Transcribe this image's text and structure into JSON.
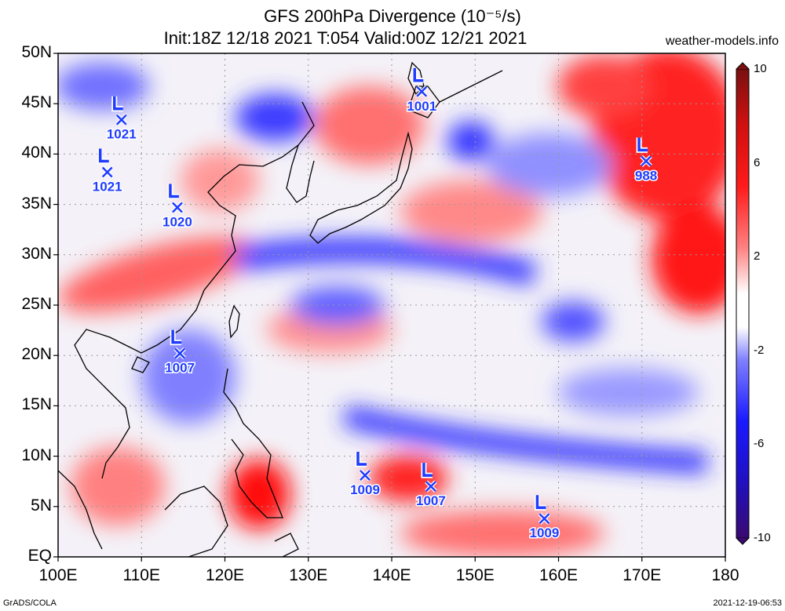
{
  "title_line1": "GFS 200hPa Divergence (10⁻⁵/s)",
  "title_line2": "Init:18Z 12/18 2021 T:054 Valid:00Z 12/21 2021",
  "site": "weather-models.info",
  "footer_left": "GrADS/COLA",
  "footer_right": "2021-12-19-06:53",
  "lat_labels": [
    "50N",
    "45N",
    "40N",
    "35N",
    "30N",
    "25N",
    "20N",
    "15N",
    "10N",
    "5N",
    "EQ"
  ],
  "lon_labels": [
    "100E",
    "110E",
    "120E",
    "130E",
    "140E",
    "150E",
    "160E",
    "170E",
    "180"
  ],
  "colorbar_labels": [
    "10",
    "6",
    "2",
    "-2",
    "-6",
    "-10"
  ],
  "map_extent": {
    "lon": [
      100,
      180
    ],
    "lat": [
      0,
      50
    ]
  },
  "colors": {
    "convergence": "#1a2cff",
    "divergence": "#ff1010",
    "neutral": "#ffffff",
    "lows": "#1f3cff"
  },
  "lows": [
    {
      "label": "1021",
      "lon": 107.6,
      "lat": 43.4
    },
    {
      "label": "1021",
      "lon": 105.9,
      "lat": 38.2
    },
    {
      "label": "1020",
      "lon": 114.3,
      "lat": 34.7
    },
    {
      "label": "1001",
      "lon": 143.6,
      "lat": 46.2
    },
    {
      "label": "988",
      "lon": 170.5,
      "lat": 39.3
    },
    {
      "label": "1007",
      "lon": 114.6,
      "lat": 20.2
    },
    {
      "label": "1009",
      "lon": 136.8,
      "lat": 8.1
    },
    {
      "label": "1007",
      "lon": 144.7,
      "lat": 7.0
    },
    {
      "label": "1009",
      "lon": 158.3,
      "lat": 3.8
    }
  ]
}
